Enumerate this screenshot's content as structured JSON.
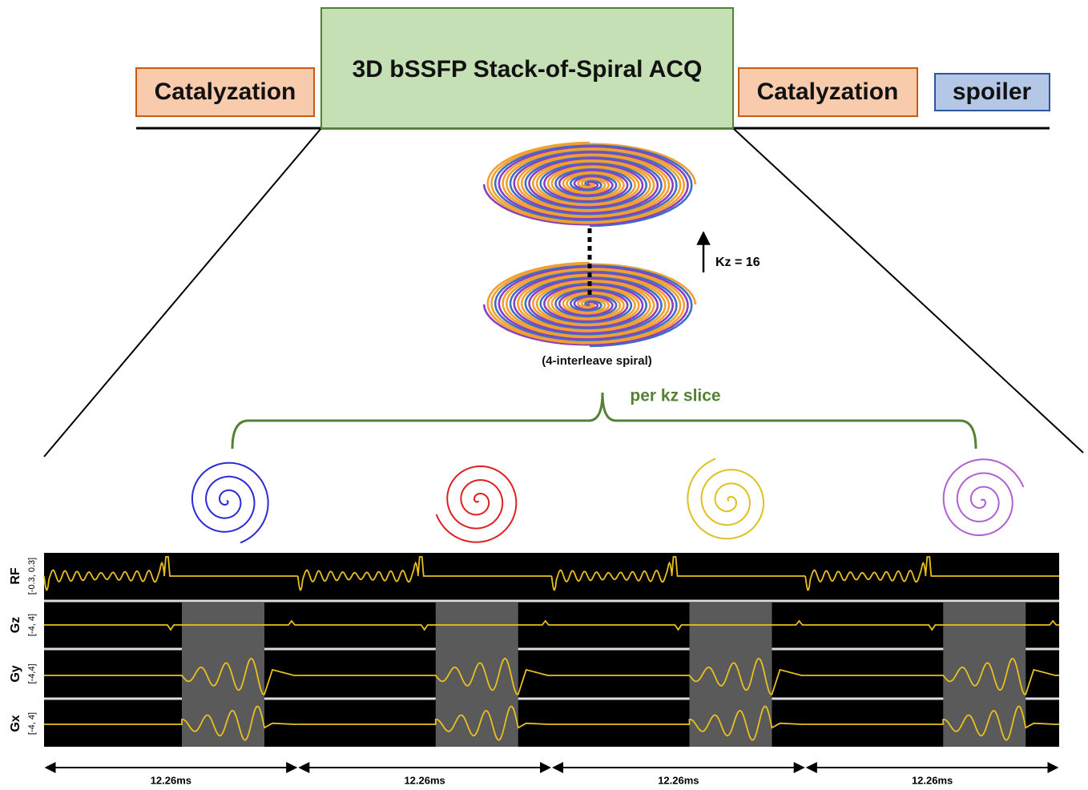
{
  "top_bar": {
    "blocks": [
      "Catalyzation",
      "3D bSSFP Stack-of-Spiral ACQ",
      "Catalyzation",
      "spoiler"
    ]
  },
  "kspace": {
    "kz_label": "Kz = 16",
    "caption": "(4-interleave spiral)",
    "brace_label": "per kz slice"
  },
  "sequence": {
    "channels": [
      {
        "name": "RF",
        "range": "[-0.3, 0.3]"
      },
      {
        "name": "Gz",
        "range": "[-4, 4]"
      },
      {
        "name": "Gy",
        "range": "[-4,4]"
      },
      {
        "name": "Gx",
        "range": "[-4, 4]"
      }
    ],
    "durations": [
      "12.26ms",
      "12.26ms",
      "12.26ms",
      "12.26ms"
    ]
  }
}
